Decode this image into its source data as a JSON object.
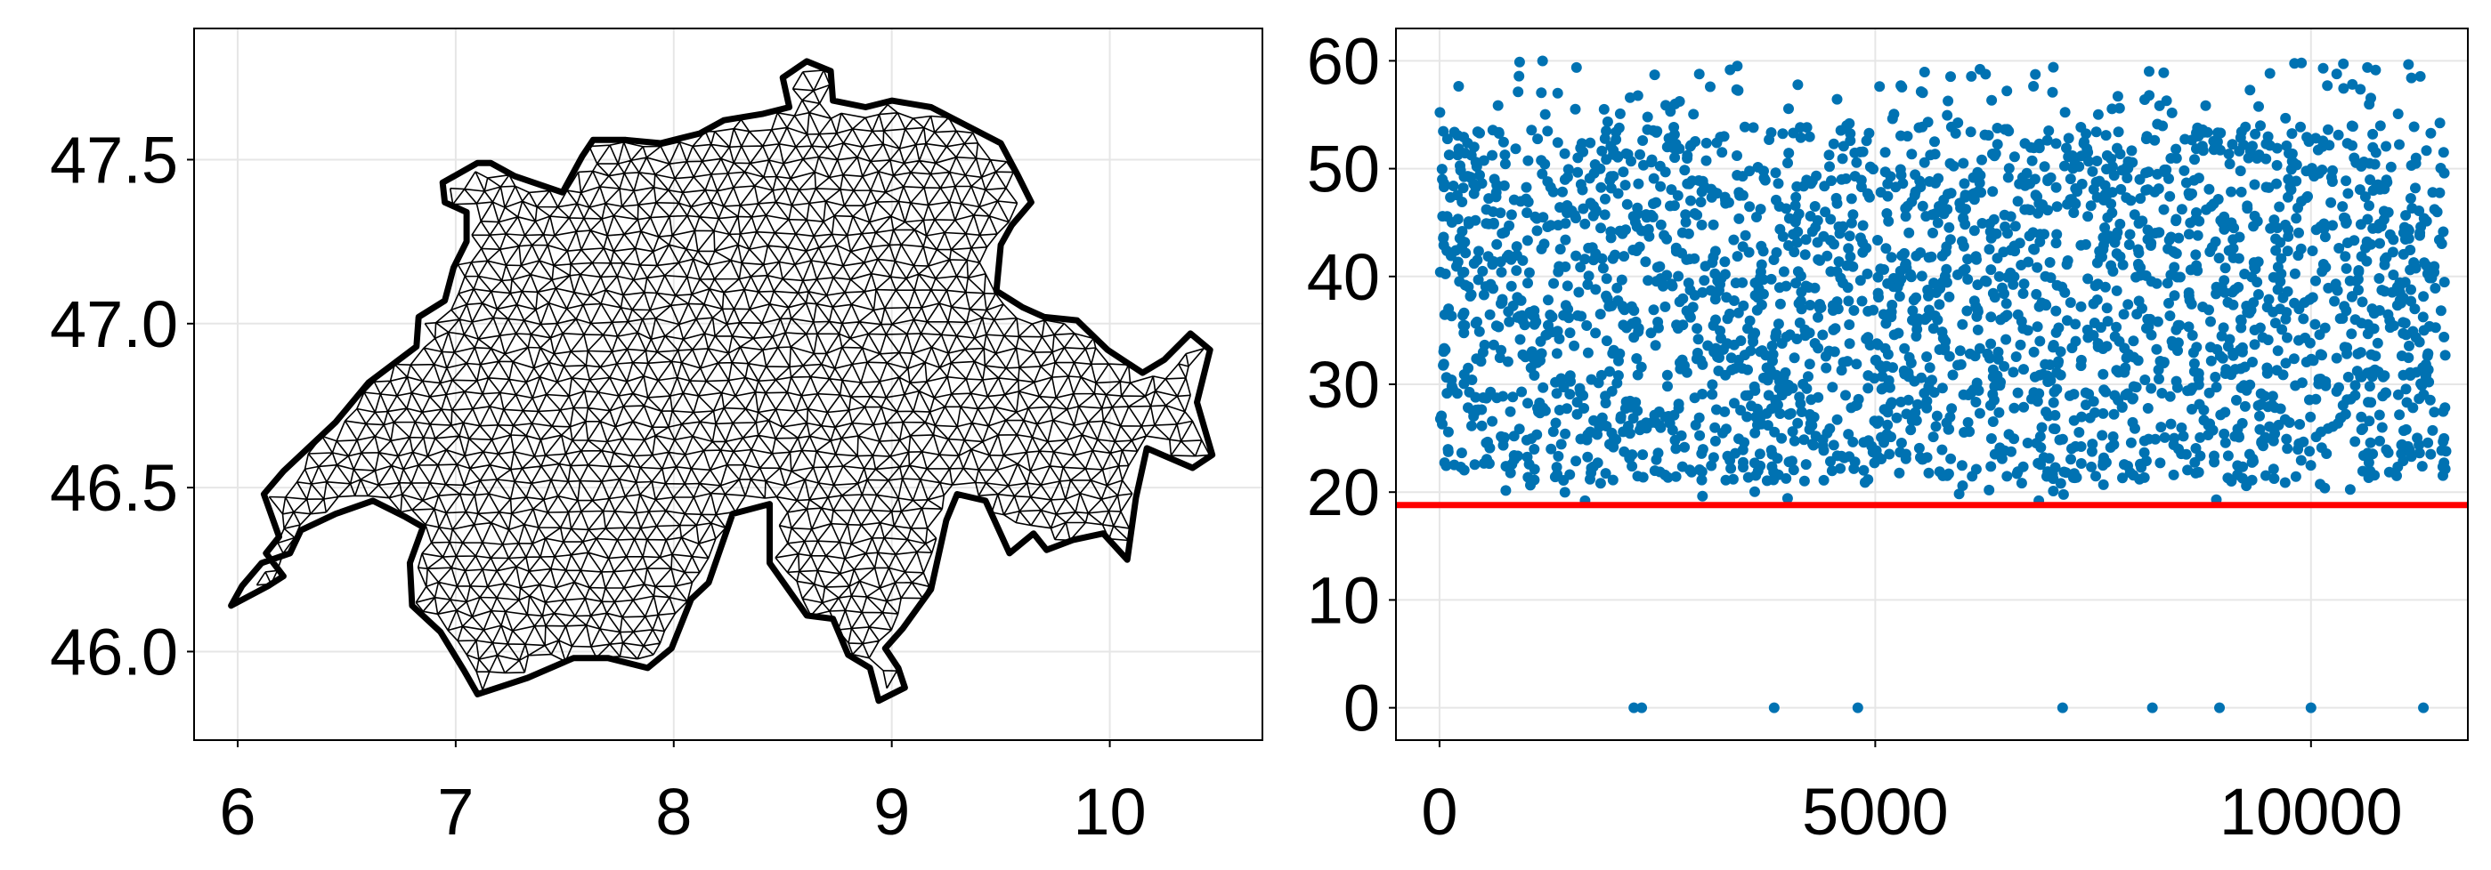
{
  "chart_data": [
    {
      "type": "mesh",
      "title": "",
      "xlabel": "",
      "ylabel": "",
      "xlim": [
        5.8,
        10.7
      ],
      "ylim": [
        45.73,
        47.9
      ],
      "x_ticks": [
        6,
        7,
        8,
        9,
        10
      ],
      "x_tick_labels": [
        "6",
        "7",
        "8",
        "9",
        "10"
      ],
      "y_ticks": [
        46.0,
        46.5,
        47.0,
        47.5
      ],
      "y_tick_labels": [
        "46.0",
        "46.5",
        "47.0",
        "47.5"
      ],
      "grid": true,
      "mesh_color": "#000000",
      "outline": [
        [
          5.97,
          46.14
        ],
        [
          6.14,
          46.2
        ],
        [
          6.21,
          46.23
        ],
        [
          6.13,
          46.3
        ],
        [
          6.19,
          46.35
        ],
        [
          6.12,
          46.48
        ],
        [
          6.21,
          46.55
        ],
        [
          6.45,
          46.7
        ],
        [
          6.6,
          46.82
        ],
        [
          6.82,
          46.93
        ],
        [
          6.83,
          47.02
        ],
        [
          6.95,
          47.07
        ],
        [
          6.99,
          47.17
        ],
        [
          7.05,
          47.25
        ],
        [
          7.05,
          47.34
        ],
        [
          6.95,
          47.37
        ],
        [
          6.94,
          47.43
        ],
        [
          7.1,
          47.49
        ],
        [
          7.16,
          47.49
        ],
        [
          7.27,
          47.45
        ],
        [
          7.49,
          47.4
        ],
        [
          7.58,
          47.51
        ],
        [
          7.63,
          47.56
        ],
        [
          7.78,
          47.56
        ],
        [
          7.94,
          47.55
        ],
        [
          8.12,
          47.58
        ],
        [
          8.23,
          47.62
        ],
        [
          8.41,
          47.64
        ],
        [
          8.53,
          47.66
        ],
        [
          8.5,
          47.75
        ],
        [
          8.61,
          47.8
        ],
        [
          8.72,
          47.77
        ],
        [
          8.73,
          47.68
        ],
        [
          8.88,
          47.66
        ],
        [
          9.0,
          47.68
        ],
        [
          9.18,
          47.66
        ],
        [
          9.5,
          47.55
        ],
        [
          9.58,
          47.45
        ],
        [
          9.64,
          47.37
        ],
        [
          9.55,
          47.3
        ],
        [
          9.5,
          47.24
        ],
        [
          9.48,
          47.1
        ],
        [
          9.6,
          47.05
        ],
        [
          9.7,
          47.02
        ],
        [
          9.85,
          47.01
        ],
        [
          9.99,
          46.92
        ],
        [
          10.15,
          46.85
        ],
        [
          10.25,
          46.89
        ],
        [
          10.37,
          46.97
        ],
        [
          10.46,
          46.92
        ],
        [
          10.4,
          46.76
        ],
        [
          10.47,
          46.6
        ],
        [
          10.38,
          46.56
        ],
        [
          10.17,
          46.62
        ],
        [
          10.12,
          46.47
        ],
        [
          10.08,
          46.28
        ],
        [
          9.97,
          46.36
        ],
        [
          9.83,
          46.34
        ],
        [
          9.71,
          46.31
        ],
        [
          9.65,
          46.36
        ],
        [
          9.54,
          46.3
        ],
        [
          9.43,
          46.46
        ],
        [
          9.3,
          46.48
        ],
        [
          9.25,
          46.4
        ],
        [
          9.18,
          46.19
        ],
        [
          9.05,
          46.07
        ],
        [
          8.97,
          46.01
        ],
        [
          9.03,
          45.95
        ],
        [
          9.06,
          45.89
        ],
        [
          8.94,
          45.85
        ],
        [
          8.9,
          45.95
        ],
        [
          8.8,
          45.99
        ],
        [
          8.73,
          46.1
        ],
        [
          8.61,
          46.11
        ],
        [
          8.44,
          46.27
        ],
        [
          8.44,
          46.45
        ],
        [
          8.27,
          46.42
        ],
        [
          8.16,
          46.21
        ],
        [
          8.08,
          46.16
        ],
        [
          7.99,
          46.01
        ],
        [
          7.88,
          45.95
        ],
        [
          7.7,
          45.98
        ],
        [
          7.54,
          45.98
        ],
        [
          7.33,
          45.92
        ],
        [
          7.1,
          45.87
        ],
        [
          7.04,
          45.94
        ],
        [
          6.93,
          46.06
        ],
        [
          6.8,
          46.14
        ],
        [
          6.79,
          46.27
        ],
        [
          6.85,
          46.38
        ],
        [
          6.77,
          46.41
        ],
        [
          6.62,
          46.46
        ],
        [
          6.45,
          46.42
        ],
        [
          6.29,
          46.37
        ],
        [
          6.24,
          46.3
        ],
        [
          6.11,
          46.27
        ],
        [
          6.02,
          46.2
        ]
      ]
    },
    {
      "type": "scatter",
      "title": "",
      "xlabel": "",
      "ylabel": "",
      "xlim": [
        -500,
        11800
      ],
      "ylim": [
        -3,
        63
      ],
      "x_ticks": [
        0,
        5000,
        10000
      ],
      "x_tick_labels": [
        "0",
        "5000",
        "10000"
      ],
      "y_ticks": [
        0,
        10,
        20,
        30,
        40,
        50,
        60
      ],
      "y_tick_labels": [
        "0",
        "10",
        "20",
        "30",
        "40",
        "50",
        "60"
      ],
      "grid": true,
      "point_color": "#0072b2",
      "n_points": 11550,
      "bulk_range": [
        19,
        60
      ],
      "outliers": [
        {
          "x": 2230,
          "y": 0
        },
        {
          "x": 2320,
          "y": 0
        },
        {
          "x": 3840,
          "y": 0
        },
        {
          "x": 4800,
          "y": 0
        },
        {
          "x": 7150,
          "y": 0
        },
        {
          "x": 8180,
          "y": 0
        },
        {
          "x": 8950,
          "y": 0
        },
        {
          "x": 10000,
          "y": 0
        },
        {
          "x": 11290,
          "y": 0
        }
      ],
      "threshold_line": {
        "y": 18.8,
        "color": "#ff0000"
      }
    }
  ]
}
